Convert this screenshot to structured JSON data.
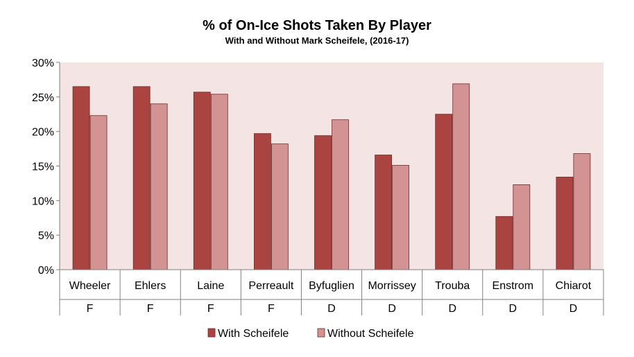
{
  "chart_data": {
    "type": "bar",
    "title": "% of On-Ice Shots Taken By Player",
    "subtitle": "With and Without Mark Scheifele,  (2016-17)",
    "categories": [
      "Wheeler",
      "Ehlers",
      "Laine",
      "Perreault",
      "Byfuglien",
      "Morrissey",
      "Trouba",
      "Enstrom",
      "Chiarot"
    ],
    "positions": [
      "F",
      "F",
      "F",
      "F",
      "D",
      "D",
      "D",
      "D",
      "D"
    ],
    "series": [
      {
        "name": "With Scheifele",
        "values": [
          26.5,
          26.5,
          25.7,
          19.7,
          19.4,
          16.6,
          22.5,
          7.7,
          13.4
        ]
      },
      {
        "name": "Without Scheifele",
        "values": [
          22.3,
          24.0,
          25.4,
          18.2,
          21.7,
          15.1,
          26.9,
          12.3,
          16.8
        ]
      }
    ],
    "ylim": [
      0,
      30
    ],
    "yticks": [
      0,
      5,
      10,
      15,
      20,
      25,
      30
    ],
    "ytick_labels": [
      "0%",
      "5%",
      "10%",
      "15%",
      "20%",
      "25%",
      "30%"
    ],
    "legend_position": "bottom",
    "colors": {
      "plot_background": "#f4e4e4",
      "with": "#a94441",
      "without": "#d39392",
      "bar_border": "#6e2a28",
      "axis": "#808080"
    }
  }
}
